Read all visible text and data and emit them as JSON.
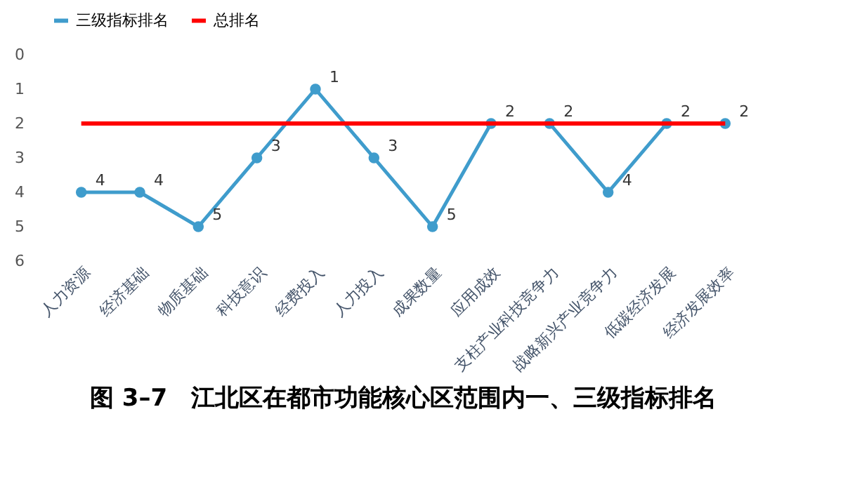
{
  "chart_data": {
    "type": "line",
    "title": "图 3–7　江北区在都市功能核心区范围内一、三级指标排名",
    "categories": [
      "人力资源",
      "经济基础",
      "物质基础",
      "科技意识",
      "经费投入",
      "人力投入",
      "成果数量",
      "应用成效",
      "支柱产业科技竞争力",
      "战略新兴产业竞争力",
      "低碳经济发展",
      "经济发展效率"
    ],
    "series": [
      {
        "name": "三级指标排名",
        "color": "#3f9ccc",
        "values": [
          4,
          4,
          5,
          3,
          1,
          3,
          5,
          2,
          2,
          4,
          2,
          2
        ],
        "marker": "circle",
        "data_labels": true
      },
      {
        "name": "总排名",
        "color": "#ff0000",
        "values": [
          2,
          2,
          2,
          2,
          2,
          2,
          2,
          2,
          2,
          2,
          2,
          2
        ],
        "marker": "none"
      }
    ],
    "ylim": [
      6,
      0
    ],
    "yticks": [
      0,
      1,
      2,
      3,
      4,
      5,
      6
    ],
    "grid": false,
    "legend": "top",
    "line_style": "solid"
  }
}
